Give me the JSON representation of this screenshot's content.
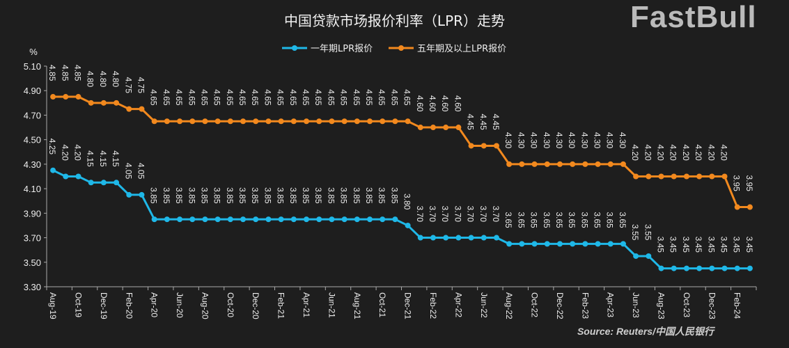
{
  "title": "中国贷款市场报价利率（LPR）走势",
  "source": "Source: Reuters/中国人民银行",
  "watermark": "FastBull",
  "chart_data": {
    "type": "line",
    "title": "中国贷款市场报价利率（LPR）走势",
    "ylabel": "%",
    "xlabel": "",
    "ylim": [
      3.3,
      5.1
    ],
    "yticks": [
      "3.30",
      "3.50",
      "3.70",
      "3.90",
      "4.10",
      "4.30",
      "4.50",
      "4.70",
      "4.90",
      "5.10"
    ],
    "grid": false,
    "legend": "top-center",
    "x": [
      "Aug-19",
      "Sep-19",
      "Oct-19",
      "Nov-19",
      "Dec-19",
      "Jan-20",
      "Feb-20",
      "Mar-20",
      "Apr-20",
      "May-20",
      "Jun-20",
      "Jul-20",
      "Aug-20",
      "Sep-20",
      "Oct-20",
      "Nov-20",
      "Dec-20",
      "Jan-21",
      "Feb-21",
      "Mar-21",
      "Apr-21",
      "May-21",
      "Jun-21",
      "Jul-21",
      "Aug-21",
      "Sep-21",
      "Oct-21",
      "Nov-21",
      "Dec-21",
      "Jan-22",
      "Feb-22",
      "Mar-22",
      "Apr-22",
      "May-22",
      "Jun-22",
      "Jul-22",
      "Aug-22",
      "Sep-22",
      "Oct-22",
      "Nov-22",
      "Dec-22",
      "Jan-23",
      "Feb-23",
      "Mar-23",
      "Apr-23",
      "May-23",
      "Jun-23",
      "Jul-23",
      "Aug-23",
      "Sep-23",
      "Oct-23",
      "Nov-23",
      "Dec-23",
      "Jan-24",
      "Feb-24",
      "Mar-24"
    ],
    "xtick_labels": [
      "Aug-19",
      "Oct-19",
      "Dec-19",
      "Feb-20",
      "Apr-20",
      "Jun-20",
      "Aug-20",
      "Oct-20",
      "Dec-20",
      "Feb-21",
      "Apr-21",
      "Jun-21",
      "Aug-21",
      "Oct-21",
      "Dec-21",
      "Feb-22",
      "Apr-22",
      "Jun-22",
      "Aug-22",
      "Oct-22",
      "Dec-22",
      "Feb-23",
      "Apr-23",
      "Jun-23",
      "Aug-23",
      "Oct-23",
      "Dec-23",
      "Feb-24"
    ],
    "series": [
      {
        "name": "一年期LPR报价",
        "color": "#1fb8e8",
        "values": [
          4.25,
          4.2,
          4.2,
          4.15,
          4.15,
          4.15,
          4.05,
          4.05,
          3.85,
          3.85,
          3.85,
          3.85,
          3.85,
          3.85,
          3.85,
          3.85,
          3.85,
          3.85,
          3.85,
          3.85,
          3.85,
          3.85,
          3.85,
          3.85,
          3.85,
          3.85,
          3.85,
          3.85,
          3.8,
          3.7,
          3.7,
          3.7,
          3.7,
          3.7,
          3.7,
          3.7,
          3.65,
          3.65,
          3.65,
          3.65,
          3.65,
          3.65,
          3.65,
          3.65,
          3.65,
          3.65,
          3.55,
          3.55,
          3.45,
          3.45,
          3.45,
          3.45,
          3.45,
          3.45,
          3.45,
          3.45
        ]
      },
      {
        "name": "五年期及以上LPR报价",
        "color": "#f2891e",
        "values": [
          4.85,
          4.85,
          4.85,
          4.8,
          4.8,
          4.8,
          4.75,
          4.75,
          4.65,
          4.65,
          4.65,
          4.65,
          4.65,
          4.65,
          4.65,
          4.65,
          4.65,
          4.65,
          4.65,
          4.65,
          4.65,
          4.65,
          4.65,
          4.65,
          4.65,
          4.65,
          4.65,
          4.65,
          4.65,
          4.6,
          4.6,
          4.6,
          4.6,
          4.45,
          4.45,
          4.45,
          4.3,
          4.3,
          4.3,
          4.3,
          4.3,
          4.3,
          4.3,
          4.3,
          4.3,
          4.3,
          4.2,
          4.2,
          4.2,
          4.2,
          4.2,
          4.2,
          4.2,
          4.2,
          3.95,
          3.95
        ]
      }
    ]
  }
}
